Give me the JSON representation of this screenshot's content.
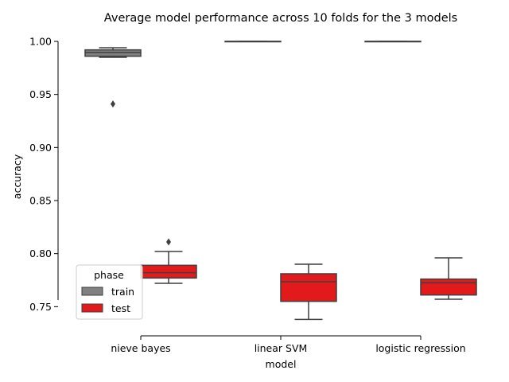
{
  "chart_data": {
    "type": "boxplot",
    "title": "Average model performance across 10 folds for the 3 models",
    "xlabel": "model",
    "ylabel": "accuracy",
    "ylim": [
      0.745,
      1.0
    ],
    "yticks": [
      0.75,
      0.8,
      0.85,
      0.9,
      0.95,
      1.0
    ],
    "ytick_labels": [
      "0.75",
      "0.80",
      "0.85",
      "0.90",
      "0.95",
      "1.00"
    ],
    "categories": [
      "nieve bayes",
      "linear SVM",
      "logistic regression"
    ],
    "grid": false,
    "legend": {
      "title": "phase",
      "position": "lower-left"
    },
    "series": [
      {
        "name": "train",
        "color": "#808080",
        "boxes": [
          {
            "whislo": 0.985,
            "q1": 0.986,
            "med": 0.9895,
            "q3": 0.992,
            "whishi": 0.994,
            "fliers": [
              0.941
            ]
          },
          {
            "whislo": 1.0,
            "q1": 1.0,
            "med": 1.0,
            "q3": 1.0,
            "whishi": 1.0,
            "fliers": []
          },
          {
            "whislo": 1.0,
            "q1": 1.0,
            "med": 1.0,
            "q3": 1.0,
            "whishi": 1.0,
            "fliers": []
          }
        ]
      },
      {
        "name": "test",
        "color": "#e31a1c",
        "boxes": [
          {
            "whislo": 0.772,
            "q1": 0.777,
            "med": 0.782,
            "q3": 0.789,
            "whishi": 0.802,
            "fliers": [
              0.811
            ]
          },
          {
            "whislo": 0.738,
            "q1": 0.755,
            "med": 0.7735,
            "q3": 0.781,
            "whishi": 0.79,
            "fliers": []
          },
          {
            "whislo": 0.757,
            "q1": 0.761,
            "med": 0.7725,
            "q3": 0.776,
            "whishi": 0.796,
            "fliers": []
          }
        ]
      }
    ]
  }
}
